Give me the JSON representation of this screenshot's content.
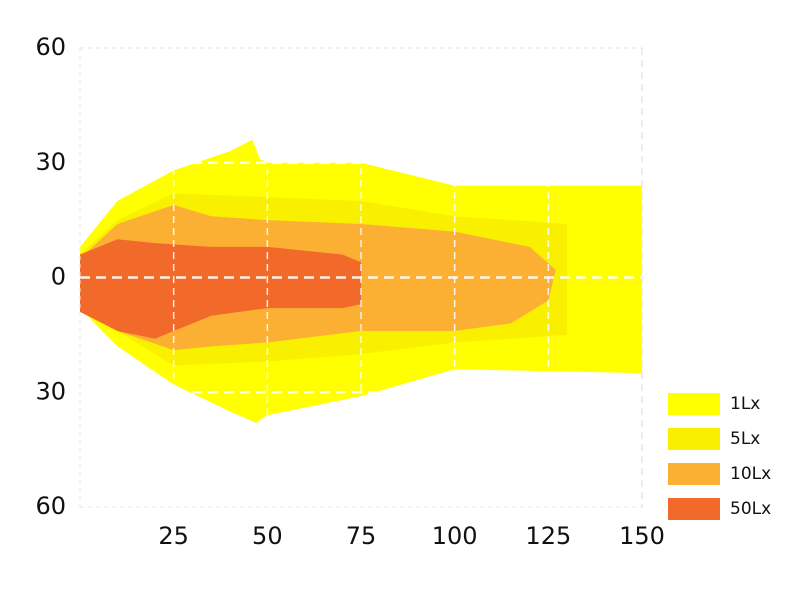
{
  "chart_data": {
    "type": "isolux",
    "xlim": [
      0,
      150
    ],
    "xticks": [
      25,
      50,
      75,
      100,
      125,
      150
    ],
    "ylim": [
      -60,
      60
    ],
    "yticks": [
      {
        "value": -60,
        "label": "60"
      },
      {
        "value": -30,
        "label": "30"
      },
      0,
      30,
      60
    ],
    "grid": true,
    "legend": "lower right",
    "series": [
      {
        "name": "1Lx",
        "color": "#ffff00",
        "x": [
          0,
          10,
          25,
          40,
          46,
          48,
          50,
          75,
          100,
          150,
          150,
          100,
          75,
          50,
          47,
          40,
          25,
          10,
          0
        ],
        "y": [
          8,
          20,
          28,
          33,
          36,
          31,
          30,
          30,
          24,
          24,
          -25,
          -24,
          -31,
          -36,
          -38,
          -35,
          -28,
          -18,
          -8
        ]
      },
      {
        "name": "5Lx",
        "color": "#f9f000",
        "x": [
          0,
          10,
          25,
          50,
          75,
          100,
          130,
          130,
          100,
          75,
          50,
          25,
          10,
          0
        ],
        "y": [
          6,
          15,
          22,
          21,
          20,
          16,
          14,
          -15,
          -17,
          -20,
          -22,
          -23,
          -14,
          -6
        ]
      },
      {
        "name": "10Lx",
        "color": "#fbb034",
        "x": [
          0,
          10,
          25,
          35,
          50,
          75,
          100,
          120,
          127,
          125,
          115,
          100,
          75,
          50,
          35,
          25,
          10,
          0
        ],
        "y": [
          5,
          14,
          19,
          16,
          15,
          14,
          12,
          8,
          2,
          -6,
          -12,
          -14,
          -14,
          -17,
          -18,
          -19,
          -14,
          -6
        ]
      },
      {
        "name": "50Lx",
        "color": "#f26a2a",
        "x": [
          0,
          10,
          20,
          35,
          50,
          70,
          75,
          75,
          70,
          50,
          35,
          20,
          10,
          0
        ],
        "y": [
          6,
          10,
          9,
          8,
          8,
          6,
          4,
          -7,
          -8,
          -8,
          -10,
          -16,
          -14,
          -9
        ]
      }
    ]
  }
}
